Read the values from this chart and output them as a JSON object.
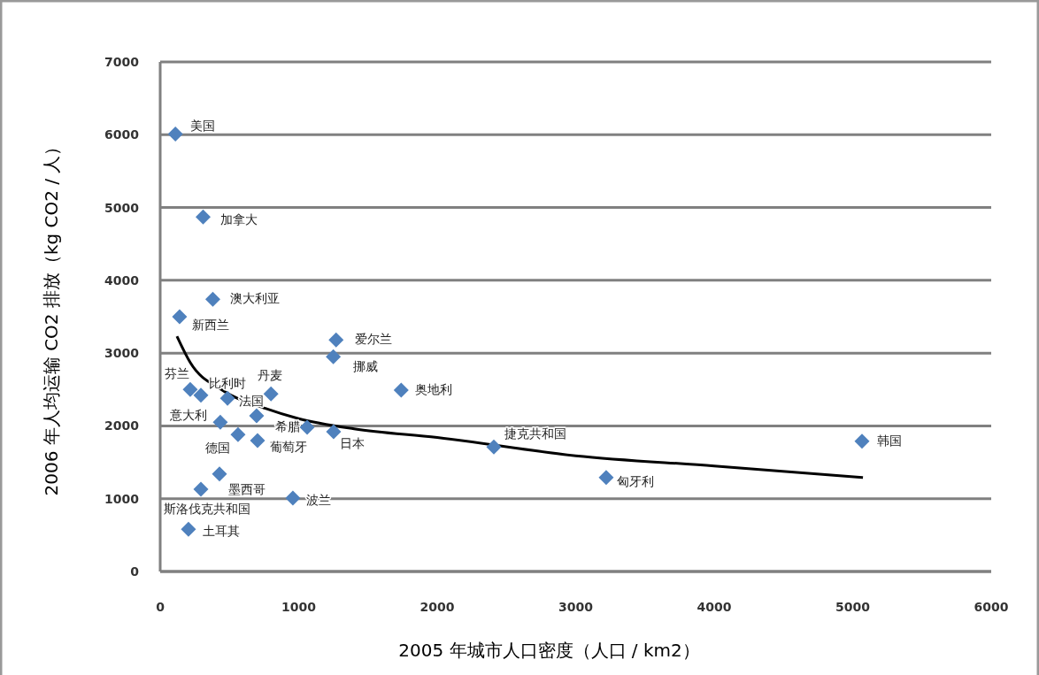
{
  "chart_data": {
    "type": "scatter",
    "xlabel": "2005 年城市人口密度（人口 / km2）",
    "ylabel": "2006 年人均运输 CO2 排放（kg CO2 / 人）",
    "xlim": [
      0,
      6000
    ],
    "xticks": [
      0,
      1000,
      2000,
      3000,
      4000,
      5000,
      6000
    ],
    "ylim": [
      0,
      7000
    ],
    "yticks": [
      0,
      1000,
      2000,
      3000,
      4000,
      5000,
      6000,
      7000
    ],
    "grid": "y",
    "marker": "diamond",
    "series": [
      {
        "color": "#4f81bd",
        "x": [
          110,
          310,
          380,
          140,
          1270,
          1250,
          1740,
          800,
          217,
          486,
          696,
          1061,
          1252,
          434,
          562,
          703,
          428,
          294,
          958,
          204,
          2409,
          3220,
          5067,
          294
        ],
        "values": [
          6010,
          4870,
          3740,
          3500,
          3180,
          2950,
          2490,
          2440,
          2500,
          2380,
          2140,
          1980,
          1920,
          2050,
          1880,
          1800,
          1340,
          1130,
          1010,
          580,
          1710,
          1290,
          1790,
          2420
        ]
      },
      {
        "type": "line",
        "color": "#000000",
        "marker": "none",
        "x": [
          121,
          217,
          441,
          760,
          1000,
          1400,
          2000,
          3000,
          4000,
          5074
        ],
        "values": [
          3230,
          2870,
          2500,
          2240,
          2100,
          1960,
          1840,
          1590,
          1450,
          1290
        ]
      }
    ],
    "annotations": [
      {
        "text": "美国",
        "x": 110,
        "y": 6010
      },
      {
        "text": "加拿大",
        "x": 310,
        "y": 4870
      },
      {
        "text": "澳大利亚",
        "x": 380,
        "y": 3740
      },
      {
        "text": "新西兰",
        "x": 140,
        "y": 3500
      },
      {
        "text": "爱尔兰",
        "x": 1270,
        "y": 3180
      },
      {
        "text": "挪威",
        "x": 1250,
        "y": 2950
      },
      {
        "text": "奥地利",
        "x": 1740,
        "y": 2490
      },
      {
        "text": "丹麦",
        "x": 800,
        "y": 2440
      },
      {
        "text": "芬兰",
        "x": 217,
        "y": 2500
      },
      {
        "text": "比利时",
        "x": 486,
        "y": 2380
      },
      {
        "text": "法国",
        "x": 696,
        "y": 2140
      },
      {
        "text": "希腊",
        "x": 1061,
        "y": 1980
      },
      {
        "text": "日本",
        "x": 1252,
        "y": 1920
      },
      {
        "text": "意大利",
        "x": 434,
        "y": 2050
      },
      {
        "text": "德国",
        "x": 562,
        "y": 1880
      },
      {
        "text": "葡萄牙",
        "x": 703,
        "y": 1800
      },
      {
        "text": "墨西哥",
        "x": 428,
        "y": 1340
      },
      {
        "text": "斯洛伐克共和国",
        "x": 294,
        "y": 1130
      },
      {
        "text": "波兰",
        "x": 958,
        "y": 1010
      },
      {
        "text": "土耳其",
        "x": 204,
        "y": 580
      },
      {
        "text": "捷克共和国",
        "x": 2409,
        "y": 1710
      },
      {
        "text": "匈牙利",
        "x": 3220,
        "y": 1290
      },
      {
        "text": "韩国",
        "x": 5067,
        "y": 1790
      }
    ]
  }
}
